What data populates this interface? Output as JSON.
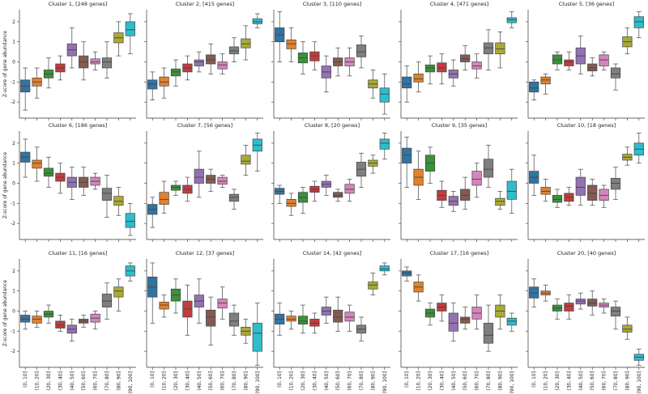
{
  "chart_data": {
    "type": "box",
    "ylabel": "Z-score of gene abundance",
    "ylim": [
      -2.8,
      2.6
    ],
    "yticks": [
      -2,
      -1,
      0,
      1,
      2
    ],
    "categories": [
      "(0, 10]",
      "(10, 20]",
      "(20, 30]",
      "(30, 40]",
      "(40, 50]",
      "(50, 60]",
      "(60, 70]",
      "(70, 80]",
      "(80, 90]",
      "(90, 100]"
    ],
    "colors": [
      "#3274a1",
      "#e1812c",
      "#3a923a",
      "#c03d3e",
      "#9372b2",
      "#845b53",
      "#d684bd",
      "#7f7f7f",
      "#a9aa35",
      "#2ebdcc"
    ],
    "panels": [
      {
        "title": "Cluster 1, [248 genes]",
        "low": [
          -2.4,
          -1.8,
          -1.3,
          -0.9,
          -0.3,
          -0.9,
          -0.4,
          -0.8,
          0.3,
          0.4
        ],
        "q1": [
          -1.5,
          -1.2,
          -0.8,
          -0.5,
          0.3,
          -0.3,
          -0.1,
          -0.3,
          0.95,
          1.3
        ],
        "median": [
          -1.2,
          -1.0,
          -0.6,
          -0.3,
          0.6,
          0.0,
          0.0,
          0.0,
          1.2,
          1.6
        ],
        "q3": [
          -0.9,
          -0.8,
          -0.4,
          -0.1,
          0.9,
          0.3,
          0.15,
          0.2,
          1.45,
          2.0
        ],
        "high": [
          -0.3,
          -0.3,
          0.2,
          0.3,
          1.7,
          1.0,
          0.5,
          1.0,
          2.0,
          2.4
        ]
      },
      {
        "title": "Cluster 2, [415 genes]",
        "low": [
          -1.9,
          -1.8,
          -1.2,
          -0.9,
          -0.5,
          -0.6,
          -0.6,
          0.0,
          0.1,
          1.7
        ],
        "q1": [
          -1.35,
          -1.2,
          -0.7,
          -0.5,
          -0.2,
          -0.1,
          -0.35,
          0.4,
          0.7,
          1.9
        ],
        "median": [
          -1.1,
          -1.0,
          -0.5,
          -0.3,
          0.0,
          0.1,
          -0.15,
          0.55,
          0.9,
          2.0
        ],
        "q3": [
          -0.9,
          -0.75,
          -0.35,
          -0.1,
          0.1,
          0.35,
          0.0,
          0.75,
          1.15,
          2.15
        ],
        "high": [
          -0.5,
          -0.3,
          0.1,
          0.3,
          0.5,
          0.9,
          0.4,
          1.2,
          1.8,
          2.4
        ]
      },
      {
        "title": "Cluster 3, [110 genes]",
        "low": [
          0.0,
          0.0,
          -0.6,
          -0.4,
          -1.5,
          -0.7,
          -0.7,
          -0.3,
          -1.8,
          -2.6
        ],
        "q1": [
          1.0,
          0.65,
          -0.05,
          0.05,
          -0.8,
          -0.2,
          -0.2,
          0.25,
          -1.3,
          -2.0
        ],
        "median": [
          1.35,
          0.9,
          0.2,
          0.3,
          -0.5,
          0.0,
          0.0,
          0.5,
          -1.1,
          -1.6
        ],
        "q3": [
          1.7,
          1.1,
          0.45,
          0.5,
          -0.2,
          0.2,
          0.2,
          0.85,
          -0.9,
          -1.3
        ],
        "high": [
          2.5,
          1.7,
          1.0,
          1.0,
          0.3,
          0.7,
          0.7,
          1.3,
          -0.4,
          -0.6
        ]
      },
      {
        "title": "Cluster 4, [471 genes]",
        "low": [
          -2.0,
          -1.5,
          -1.1,
          -1.1,
          -1.2,
          -0.4,
          -0.8,
          -0.4,
          -0.3,
          1.7
        ],
        "q1": [
          -1.3,
          -1.0,
          -0.5,
          -0.5,
          -0.8,
          0.0,
          -0.35,
          0.4,
          0.4,
          1.95
        ],
        "median": [
          -1.1,
          -0.85,
          -0.3,
          -0.3,
          -0.6,
          0.15,
          -0.2,
          0.7,
          0.65,
          2.1
        ],
        "q3": [
          -0.75,
          -0.6,
          -0.15,
          -0.05,
          -0.4,
          0.35,
          0.0,
          0.95,
          0.95,
          2.2
        ],
        "high": [
          -0.2,
          0.0,
          0.3,
          0.4,
          0.1,
          0.8,
          0.4,
          1.6,
          1.5,
          2.5
        ]
      },
      {
        "title": "Cluster 5, [36 genes]",
        "low": [
          -1.9,
          -1.6,
          -0.4,
          -0.4,
          -0.6,
          -0.7,
          -0.4,
          -1.4,
          0.4,
          1.2
        ],
        "q1": [
          -1.5,
          -1.1,
          -0.1,
          -0.2,
          -0.1,
          -0.45,
          -0.2,
          -0.8,
          0.75,
          1.7
        ],
        "median": [
          -1.3,
          -0.9,
          0.1,
          0.0,
          0.3,
          -0.3,
          0.1,
          -0.6,
          1.0,
          2.0
        ],
        "q3": [
          -1.0,
          -0.75,
          0.35,
          0.1,
          0.7,
          -0.1,
          0.35,
          -0.3,
          1.25,
          2.25
        ],
        "high": [
          -0.9,
          -0.6,
          0.5,
          0.5,
          1.3,
          0.2,
          0.5,
          -0.1,
          1.7,
          2.5
        ]
      },
      {
        "title": "Cluster 6, [186 genes]",
        "low": [
          0.3,
          0.1,
          -0.2,
          -0.5,
          -0.8,
          -0.6,
          -0.3,
          -1.7,
          -1.6,
          -2.6
        ],
        "q1": [
          1.05,
          0.75,
          0.35,
          0.1,
          -0.2,
          -0.2,
          -0.1,
          -0.85,
          -1.1,
          -2.2
        ],
        "median": [
          1.3,
          1.0,
          0.5,
          0.3,
          0.05,
          0.05,
          0.1,
          -0.5,
          -0.9,
          -1.9
        ],
        "q3": [
          1.55,
          1.15,
          0.75,
          0.5,
          0.3,
          0.3,
          0.3,
          -0.25,
          -0.65,
          -1.5
        ],
        "high": [
          2.2,
          1.8,
          1.3,
          1.0,
          0.8,
          0.8,
          0.5,
          0.4,
          -0.2,
          -1.0
        ]
      },
      {
        "title": "Cluster 7, [56 genes]",
        "low": [
          -2.2,
          -1.5,
          -0.6,
          -0.9,
          -0.7,
          -0.4,
          -0.2,
          -1.3,
          0.4,
          0.6
        ],
        "q1": [
          -1.55,
          -1.05,
          -0.35,
          -0.5,
          0.0,
          0.0,
          -0.05,
          -0.9,
          0.95,
          1.6
        ],
        "median": [
          -1.3,
          -0.8,
          -0.2,
          -0.3,
          0.3,
          0.2,
          0.1,
          -0.7,
          1.1,
          1.9
        ],
        "q3": [
          -1.05,
          -0.45,
          -0.1,
          -0.1,
          0.7,
          0.4,
          0.3,
          -0.55,
          1.4,
          2.2
        ],
        "high": [
          -0.7,
          0.1,
          0.1,
          0.3,
          1.6,
          0.7,
          0.4,
          -0.3,
          1.9,
          2.5
        ]
      },
      {
        "title": "Cluster 8, [20 genes]",
        "low": [
          -1.0,
          -1.6,
          -1.5,
          -0.9,
          -0.6,
          -0.9,
          -0.9,
          -0.2,
          0.5,
          1.2
        ],
        "q1": [
          -0.55,
          -1.15,
          -0.95,
          -0.45,
          -0.2,
          -0.7,
          -0.5,
          0.35,
          0.85,
          1.7
        ],
        "median": [
          -0.4,
          -1.0,
          -0.7,
          -0.3,
          -0.05,
          -0.6,
          -0.3,
          0.7,
          1.0,
          2.0
        ],
        "q3": [
          -0.25,
          -0.8,
          -0.45,
          -0.15,
          0.1,
          -0.45,
          -0.05,
          1.05,
          1.15,
          2.2
        ],
        "high": [
          -0.1,
          -0.5,
          -0.2,
          0.1,
          0.4,
          -0.3,
          0.2,
          1.5,
          1.4,
          2.5
        ]
      },
      {
        "title": "Cluster 9, [35 genes]",
        "low": [
          -0.2,
          -0.8,
          0.0,
          -1.2,
          -1.4,
          -1.3,
          -0.7,
          -0.2,
          -1.3,
          -1.5
        ],
        "q1": [
          1.0,
          -0.1,
          0.6,
          -0.85,
          -1.1,
          -0.85,
          -0.1,
          0.3,
          -1.1,
          -0.8
        ],
        "median": [
          1.4,
          0.3,
          1.0,
          -0.6,
          -0.9,
          -0.6,
          0.2,
          0.7,
          -0.9,
          -0.4
        ],
        "q3": [
          1.75,
          0.7,
          1.4,
          -0.35,
          -0.65,
          -0.3,
          0.6,
          1.2,
          -0.75,
          0.1
        ],
        "high": [
          2.3,
          1.6,
          1.8,
          0.1,
          -0.4,
          0.3,
          1.0,
          1.9,
          -0.4,
          0.7
        ]
      },
      {
        "title": "Cluster 10, [18 genes]",
        "low": [
          -0.6,
          -0.9,
          -1.2,
          -1.1,
          -1.1,
          -1.1,
          -1.2,
          -0.8,
          0.9,
          1.0
        ],
        "q1": [
          0.0,
          -0.55,
          -0.95,
          -0.9,
          -0.6,
          -0.85,
          -0.85,
          -0.3,
          1.15,
          1.4
        ],
        "median": [
          0.3,
          -0.4,
          -0.8,
          -0.7,
          -0.2,
          -0.5,
          -0.6,
          0.0,
          1.3,
          1.7
        ],
        "q3": [
          0.6,
          -0.2,
          -0.6,
          -0.5,
          0.3,
          -0.1,
          -0.3,
          0.25,
          1.45,
          2.0
        ],
        "high": [
          1.4,
          0.2,
          -0.3,
          -0.2,
          0.7,
          0.2,
          -0.1,
          0.8,
          1.8,
          2.5
        ]
      },
      {
        "title": "Cluster 11, [16 genes]",
        "low": [
          -0.9,
          -0.8,
          -0.6,
          -1.0,
          -1.5,
          -0.8,
          -0.9,
          -0.4,
          0.0,
          1.5
        ],
        "q1": [
          -0.55,
          -0.6,
          -0.3,
          -0.85,
          -1.1,
          -0.6,
          -0.55,
          0.2,
          0.7,
          1.75
        ],
        "median": [
          -0.4,
          -0.4,
          -0.15,
          -0.7,
          -0.9,
          -0.5,
          -0.35,
          0.5,
          1.0,
          2.0
        ],
        "q3": [
          -0.2,
          -0.25,
          0.0,
          -0.5,
          -0.7,
          -0.4,
          -0.15,
          0.85,
          1.2,
          2.25
        ],
        "high": [
          0.0,
          0.0,
          0.3,
          -0.2,
          -0.4,
          -0.2,
          0.0,
          1.4,
          1.6,
          2.4
        ]
      },
      {
        "title": "Cluster 12, [37 genes]",
        "low": [
          -0.6,
          -0.3,
          -0.1,
          -1.2,
          -0.6,
          -1.7,
          -0.4,
          -1.2,
          -1.6,
          -2.7
        ],
        "q1": [
          0.7,
          0.1,
          0.5,
          -0.3,
          0.2,
          -0.75,
          0.15,
          -0.75,
          -1.2,
          -2.0
        ],
        "median": [
          1.2,
          0.3,
          0.8,
          0.1,
          0.5,
          -0.3,
          0.4,
          -0.5,
          -1.0,
          -1.1
        ],
        "q3": [
          1.7,
          0.45,
          1.1,
          0.5,
          0.8,
          0.05,
          0.6,
          -0.1,
          -0.8,
          -0.6
        ],
        "high": [
          2.4,
          0.8,
          1.6,
          1.3,
          1.6,
          0.7,
          1.2,
          0.3,
          -0.4,
          0.4
        ]
      },
      {
        "title": "Cluster 14, [42 genes]",
        "low": [
          -1.2,
          -0.9,
          -1.1,
          -1.1,
          -0.6,
          -1.0,
          -1.0,
          -1.5,
          0.8,
          1.8
        ],
        "q1": [
          -0.65,
          -0.5,
          -0.65,
          -0.75,
          -0.2,
          -0.55,
          -0.5,
          -1.1,
          1.1,
          2.0
        ],
        "median": [
          -0.4,
          -0.4,
          -0.5,
          -0.6,
          0.0,
          -0.3,
          -0.3,
          -0.9,
          1.3,
          2.1
        ],
        "q3": [
          -0.15,
          -0.25,
          -0.25,
          -0.4,
          0.2,
          0.05,
          -0.05,
          -0.7,
          1.45,
          2.25
        ],
        "high": [
          0.4,
          0.0,
          0.3,
          -0.1,
          0.7,
          0.7,
          0.3,
          -0.3,
          1.9,
          2.4
        ]
      },
      {
        "title": "Cluster 17, [16 genes]",
        "low": [
          1.5,
          0.5,
          -0.7,
          -0.5,
          -1.5,
          -0.9,
          -0.9,
          -2.0,
          -0.9,
          -1.0
        ],
        "q1": [
          1.75,
          0.95,
          -0.3,
          0.0,
          -1.0,
          -0.6,
          -0.4,
          -1.6,
          -0.3,
          -0.7
        ],
        "median": [
          1.9,
          1.2,
          -0.1,
          0.2,
          -0.6,
          -0.4,
          -0.1,
          -1.2,
          0.0,
          -0.5
        ],
        "q3": [
          2.0,
          1.45,
          0.1,
          0.4,
          -0.1,
          -0.3,
          0.2,
          -0.6,
          0.3,
          -0.35
        ],
        "high": [
          2.2,
          1.8,
          0.4,
          0.8,
          0.4,
          0.2,
          0.8,
          0.3,
          0.8,
          -0.1
        ]
      },
      {
        "title": "Cluster 20, [40 genes]",
        "low": [
          0.2,
          0.5,
          -0.4,
          -0.4,
          0.1,
          -0.2,
          -0.1,
          -0.9,
          -1.4,
          -2.7
        ],
        "q1": [
          0.65,
          0.8,
          0.0,
          0.0,
          0.35,
          0.25,
          0.2,
          -0.25,
          -1.05,
          -2.45
        ],
        "median": [
          0.9,
          0.9,
          0.15,
          0.25,
          0.5,
          0.4,
          0.3,
          0.0,
          -0.9,
          -2.3
        ],
        "q3": [
          1.2,
          1.0,
          0.3,
          0.4,
          0.6,
          0.6,
          0.4,
          0.2,
          -0.7,
          -2.15
        ],
        "high": [
          1.6,
          1.3,
          0.6,
          0.8,
          0.9,
          1.0,
          0.6,
          0.5,
          -0.3,
          -1.9
        ]
      }
    ]
  }
}
